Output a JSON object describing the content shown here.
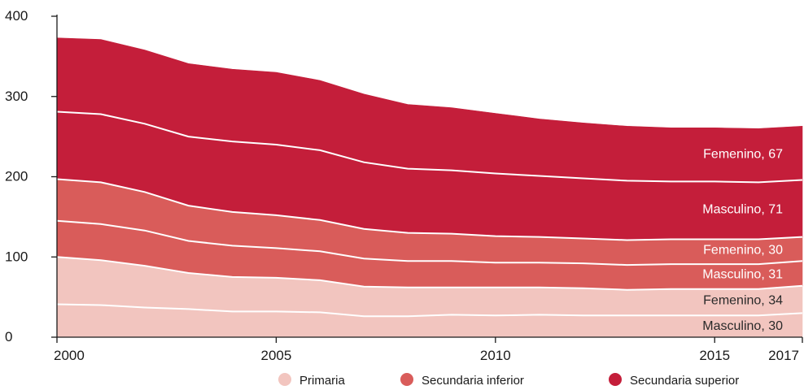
{
  "chart_data": {
    "type": "area",
    "stacked": true,
    "title": "",
    "xlabel": "",
    "ylabel": "",
    "x": [
      2000,
      2001,
      2002,
      2003,
      2004,
      2005,
      2006,
      2007,
      2008,
      2009,
      2010,
      2011,
      2012,
      2013,
      2014,
      2015,
      2016,
      2017
    ],
    "xticks": [
      "2000",
      "2005",
      "2010",
      "2015",
      "2017"
    ],
    "xtick_values": [
      2000,
      2005,
      2010,
      2015,
      2017
    ],
    "ylim": [
      0,
      400
    ],
    "yticks": [
      0,
      100,
      200,
      300,
      400
    ],
    "grid": false,
    "legend_position": "bottom-right",
    "series": [
      {
        "group": "Primaria",
        "label": "Masculino, 30",
        "color": "#f2c5bf",
        "values": [
          41,
          40,
          37,
          35,
          32,
          32,
          31,
          26,
          26,
          28,
          27,
          28,
          27,
          27,
          27,
          27,
          27,
          30
        ]
      },
      {
        "group": "Primaria",
        "label": "Femenino, 34",
        "color": "#f2c5bf",
        "values": [
          59,
          56,
          52,
          45,
          43,
          42,
          40,
          37,
          36,
          34,
          35,
          34,
          34,
          32,
          33,
          33,
          33,
          34
        ]
      },
      {
        "group": "Secundaria inferior",
        "label": "Masculino, 31",
        "color": "#d95c5a",
        "values": [
          45,
          45,
          44,
          40,
          39,
          37,
          36,
          35,
          33,
          33,
          31,
          31,
          31,
          31,
          31,
          31,
          31,
          31
        ]
      },
      {
        "group": "Secundaria inferior",
        "label": "Femenino, 30",
        "color": "#d95c5a",
        "values": [
          52,
          52,
          48,
          44,
          42,
          41,
          39,
          37,
          35,
          34,
          33,
          32,
          31,
          31,
          31,
          31,
          31,
          30
        ]
      },
      {
        "group": "Secundaria superior",
        "label": "Masculino, 71",
        "color": "#c41e3a",
        "values": [
          84,
          85,
          85,
          86,
          88,
          88,
          87,
          83,
          80,
          79,
          78,
          76,
          75,
          74,
          72,
          72,
          71,
          71
        ]
      },
      {
        "group": "Secundaria superior",
        "label": "Femenino, 67",
        "color": "#c41e3a",
        "values": [
          92,
          93,
          92,
          91,
          90,
          90,
          87,
          85,
          80,
          78,
          75,
          71,
          69,
          68,
          67,
          67,
          67,
          67
        ]
      }
    ],
    "legend": [
      {
        "label": "Primaria",
        "color": "#f2c5bf"
      },
      {
        "label": "Secundaria inferior",
        "color": "#d95c5a"
      },
      {
        "label": "Secundaria superior",
        "color": "#c41e3a"
      }
    ]
  }
}
